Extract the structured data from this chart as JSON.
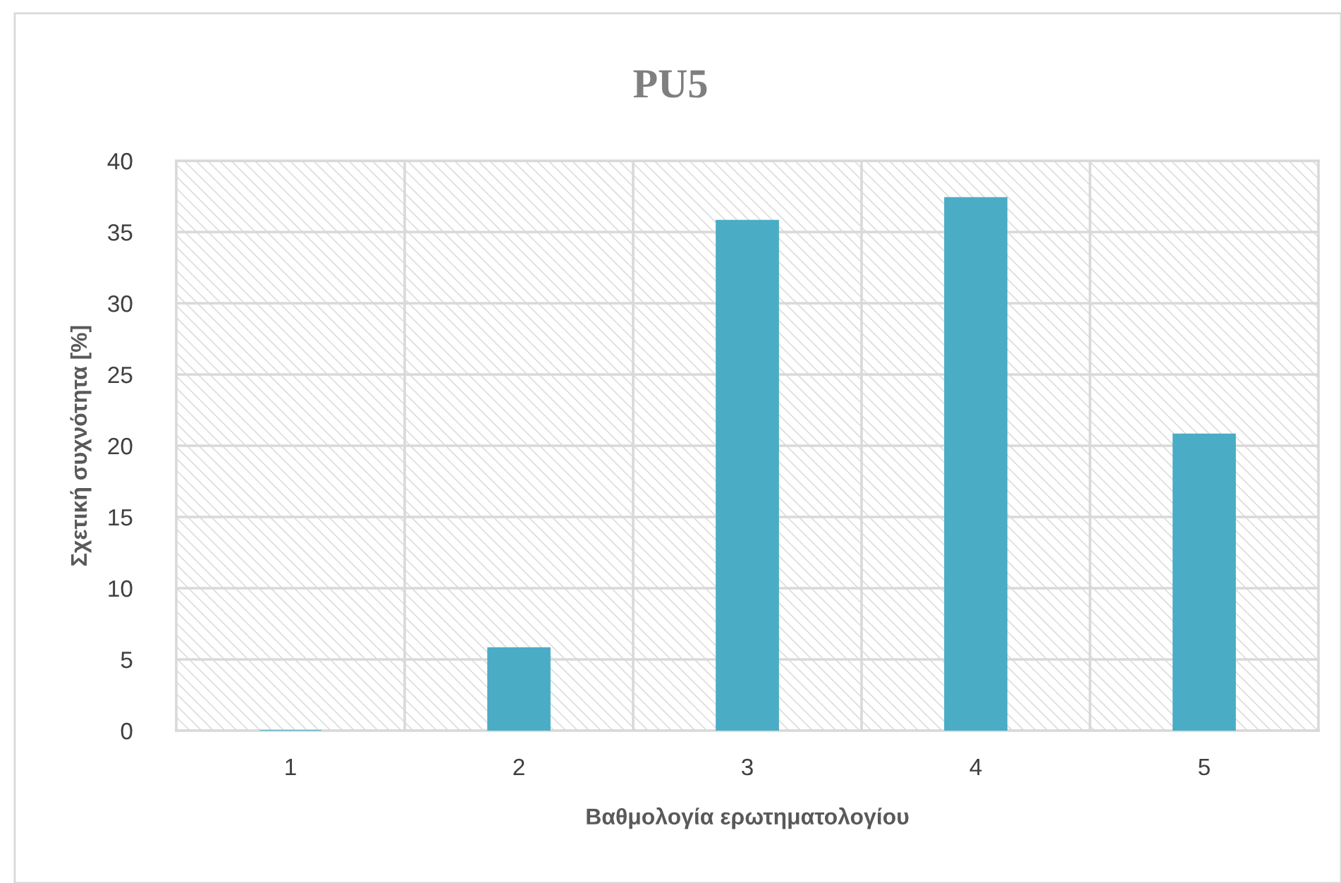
{
  "chart_data": {
    "type": "bar",
    "title": "PU5",
    "xlabel": "Βαθμολογία ερωτηματολογίου",
    "ylabel": "Σχετική συχνότητα [%]",
    "categories": [
      "1",
      "2",
      "3",
      "4",
      "5"
    ],
    "values": [
      0,
      5.8,
      35.8,
      37.4,
      20.8
    ],
    "color": "#4bacc6",
    "ylim": [
      0,
      40
    ],
    "yticks": [
      0,
      5,
      10,
      15,
      20,
      25,
      30,
      35,
      40
    ],
    "grid": true
  }
}
